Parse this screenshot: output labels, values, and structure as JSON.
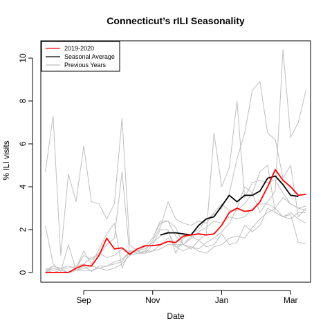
{
  "chart_data": {
    "type": "line",
    "title": "Connecticut’s rILI Seasonality",
    "xlabel": "Date",
    "ylabel": "% ILI visits",
    "x_weeks": [
      1,
      2,
      3,
      4,
      5,
      6,
      7,
      8,
      9,
      10,
      11,
      12,
      13,
      14,
      15,
      16,
      17,
      18,
      19,
      20,
      21,
      22,
      23,
      24,
      25,
      26,
      27,
      28,
      29,
      30,
      31,
      32,
      33,
      34,
      35
    ],
    "x_ticks": [
      {
        "week": 6,
        "label": "Sep"
      },
      {
        "week": 15,
        "label": "Nov"
      },
      {
        "week": 24,
        "label": "Jan"
      },
      {
        "week": 33,
        "label": "Mar"
      }
    ],
    "ylim": [
      0,
      10.5
    ],
    "y_ticks": [
      0,
      2,
      4,
      6,
      8,
      10
    ],
    "legend": {
      "position": "top-left",
      "entries": [
        {
          "label": "2019-2020",
          "color": "#ff0000"
        },
        {
          "label": "Seasonal Average",
          "color": "#000000"
        },
        {
          "label": "Previous Years",
          "color": "#bebebe"
        }
      ]
    },
    "series": [
      {
        "name": "2019-2020",
        "color": "#ff0000",
        "x_start": 1,
        "values": [
          0.0,
          0.0,
          0.0,
          0.0,
          0.2,
          0.35,
          0.3,
          0.8,
          1.6,
          1.1,
          1.15,
          0.85,
          1.1,
          1.25,
          1.25,
          1.3,
          1.45,
          1.4,
          1.7,
          1.75,
          1.8,
          1.75,
          1.8,
          2.2,
          2.8,
          3.0,
          2.85,
          2.9,
          3.3,
          4.0,
          4.8,
          4.3,
          4.0,
          3.6,
          3.65
        ]
      },
      {
        "name": "Seasonal Average",
        "color": "#000000",
        "x_start": 16,
        "values": [
          1.75,
          1.85,
          1.85,
          1.8,
          1.75,
          2.2,
          2.5,
          2.6,
          3.1,
          3.6,
          3.3,
          3.6,
          3.6,
          3.8,
          4.4,
          4.5,
          4.1,
          3.6,
          3.55
        ]
      },
      {
        "name": "Previous Years 1",
        "color": "#bebebe",
        "x_start": 1,
        "values": [
          4.7,
          7.3,
          0.8,
          4.6,
          3.3,
          5.9,
          3.3,
          3.2,
          2.5,
          3.2,
          7.2,
          1.3,
          1.0,
          1.2,
          1.6,
          2.4,
          2.4,
          1.7,
          1.3,
          1.1,
          1.5,
          1.2,
          1.3,
          1.8,
          1.3,
          1.4,
          2.2,
          1.9,
          2.2,
          3.0,
          2.8,
          2.6,
          2.7,
          1.4,
          1.35
        ]
      },
      {
        "name": "Previous Years 2",
        "color": "#bebebe",
        "x_start": 1,
        "values": [
          2.2,
          0.4,
          0.05,
          1.3,
          0.1,
          0.3,
          0.05,
          0.3,
          0.3,
          0.5,
          0.6,
          1.0,
          1.0,
          1.1,
          1.4,
          1.7,
          1.9,
          1.2,
          1.3,
          1.7,
          1.5,
          1.8,
          6.5,
          4.0,
          4.9,
          8.0,
          3.5,
          4.2,
          4.3,
          4.2,
          4.3,
          3.7,
          3.2,
          3.0,
          2.9
        ]
      },
      {
        "name": "Previous Years 3",
        "color": "#bebebe",
        "x_start": 1,
        "values": [
          0.2,
          0.1,
          0.2,
          0.0,
          0.2,
          1.0,
          0.4,
          1.1,
          1.8,
          2.3,
          0.2,
          1.0,
          1.0,
          0.9,
          1.3,
          2.0,
          2.0,
          0.9,
          1.6,
          1.8,
          2.0,
          2.5,
          2.7,
          3.0,
          3.7,
          5.3,
          6.5,
          8.5,
          8.9,
          6.5,
          6.2,
          4.4,
          5.0,
          2.6,
          3.0
        ]
      },
      {
        "name": "Previous Years 4",
        "color": "#bebebe",
        "x_start": 1,
        "values": [
          0.0,
          0.3,
          0.2,
          0.2,
          0.3,
          0.4,
          0.7,
          0.8,
          1.3,
          1.6,
          4.7,
          0.8,
          1.1,
          1.2,
          1.6,
          2.3,
          2.4,
          2.1,
          1.3,
          1.6,
          1.9,
          2.1,
          2.4,
          2.3,
          2.6,
          2.5,
          2.6,
          3.0,
          3.2,
          3.2,
          3.0,
          2.6,
          2.5,
          2.8,
          2.8
        ]
      },
      {
        "name": "Previous Years 5",
        "color": "#bebebe",
        "x_start": 1,
        "values": [
          0.1,
          0.3,
          0.2,
          0.3,
          0.2,
          0.8,
          0.6,
          0.9,
          0.7,
          0.8,
          1.1,
          1.0,
          0.9,
          1.0,
          1.5,
          2.1,
          3.3,
          2.5,
          2.3,
          2.2,
          2.4,
          2.3,
          2.8,
          3.2,
          2.9,
          2.9,
          3.2,
          3.7,
          4.7,
          5.0,
          2.8,
          2.6,
          2.8,
          2.5,
          2.3
        ]
      },
      {
        "name": "Previous Years 6",
        "color": "#bebebe",
        "x_start": 1,
        "values": [
          0.1,
          0.0,
          0.1,
          0.0,
          0.1,
          0.2,
          0.3,
          0.2,
          0.1,
          0.2,
          0.4,
          0.8,
          0.9,
          1.0,
          1.0,
          1.3,
          1.6,
          1.2,
          1.0,
          1.2,
          1.1,
          1.4,
          1.6,
          1.9,
          2.3,
          3.0,
          4.0,
          3.7,
          2.8,
          3.3,
          3.8,
          10.4,
          6.3,
          7.0,
          8.5
        ]
      },
      {
        "name": "Previous Years 7",
        "color": "#bebebe",
        "x_start": 1,
        "values": [
          0.0,
          0.2,
          0.1,
          0.0,
          0.1,
          0.1,
          0.1,
          0.2,
          0.3,
          0.4,
          0.5,
          1.0,
          0.9,
          0.9,
          1.0,
          1.1,
          1.3,
          1.3,
          1.3,
          1.2,
          1.0,
          0.9,
          1.2,
          1.3,
          1.6,
          1.7,
          1.6,
          2.1,
          2.5,
          2.8,
          3.0,
          3.5,
          3.2,
          3.0,
          3.1
        ]
      }
    ]
  }
}
